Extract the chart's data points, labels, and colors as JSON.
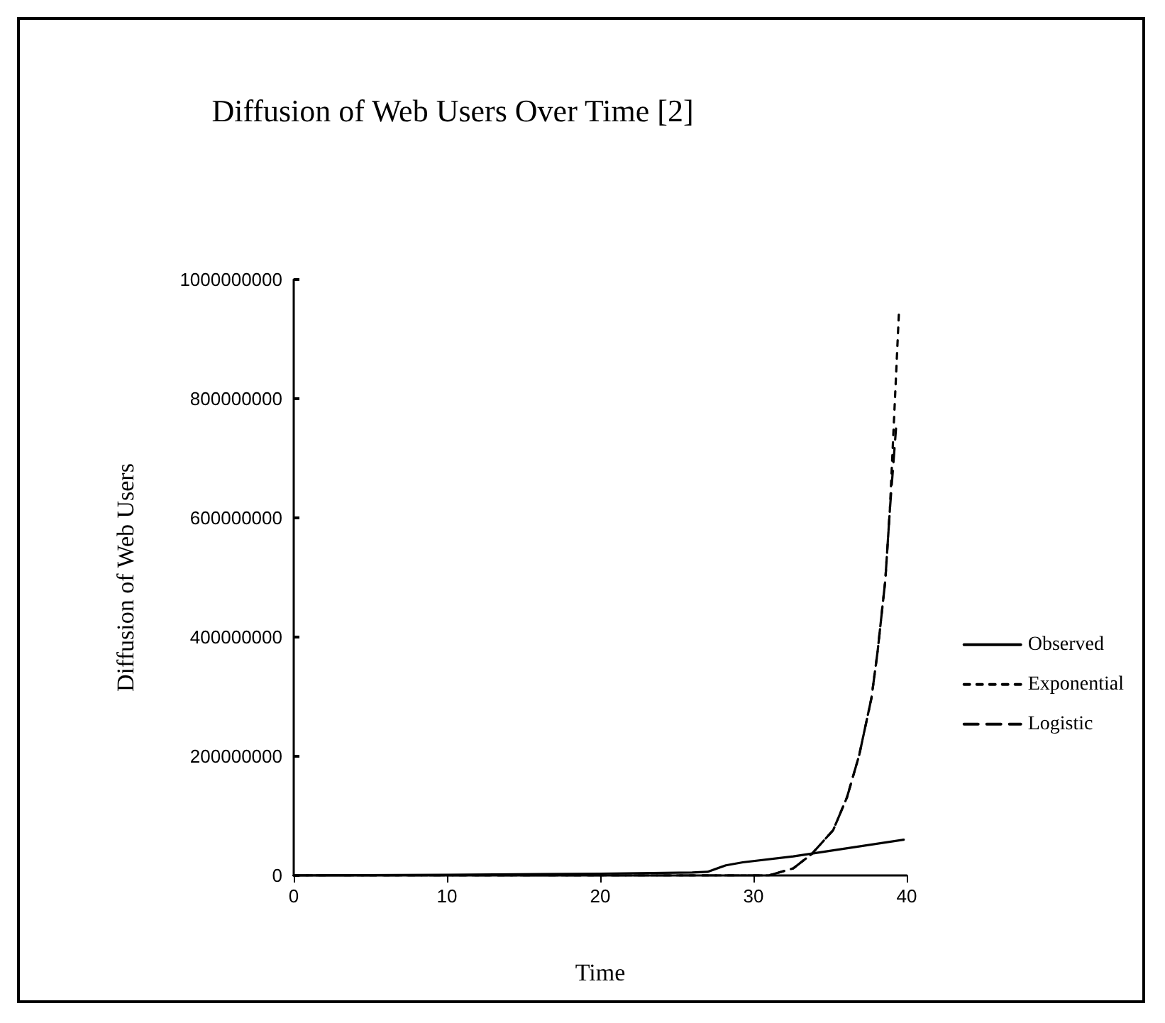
{
  "chart_data": {
    "type": "line",
    "title": "Diffusion of Web Users Over Time [2]",
    "xlabel": "Time",
    "ylabel": "Diffusion of Web Users",
    "xlim": [
      0,
      40
    ],
    "xticks": [
      0,
      10,
      20,
      30,
      40
    ],
    "ylim": [
      0,
      1000000000
    ],
    "yticks": [
      0,
      200000000,
      400000000,
      600000000,
      800000000,
      1000000000
    ],
    "grid": false,
    "legend": "right",
    "marker": "none",
    "series": [
      {
        "name": "Observed",
        "color": "#000000",
        "line_style": "solid",
        "x": [
          0,
          10,
          20,
          26,
          27,
          28.2,
          29.3,
          32.6,
          39.8
        ],
        "values": [
          0,
          1000000,
          3000000,
          5000000,
          6000000,
          17000000,
          22000000,
          32000000,
          60000000
        ]
      },
      {
        "name": "Exponential",
        "color": "#000000",
        "line_style": "dotted",
        "x": [
          0,
          10,
          20,
          28,
          31,
          32.6,
          33.8,
          35.2,
          36.1,
          36.9,
          37.7,
          38.1,
          38.6,
          38.9,
          39.5
        ],
        "values": [
          0,
          0,
          0,
          0,
          0,
          12000000,
          36000000,
          76000000,
          131000000,
          202000000,
          298000000,
          376000000,
          495000000,
          614000000,
          950000000
        ]
      },
      {
        "name": "Logistic",
        "color": "#000000",
        "line_style": "dashed",
        "x": [
          0,
          10,
          20,
          28,
          31,
          32.6,
          33.8,
          35.2,
          36.1,
          36.9,
          37.7,
          38.1,
          38.6,
          38.9,
          39.3
        ],
        "values": [
          0,
          0,
          0,
          0,
          0,
          12000000,
          36000000,
          76000000,
          131000000,
          202000000,
          298000000,
          376000000,
          495000000,
          614000000,
          750000000
        ]
      }
    ]
  }
}
